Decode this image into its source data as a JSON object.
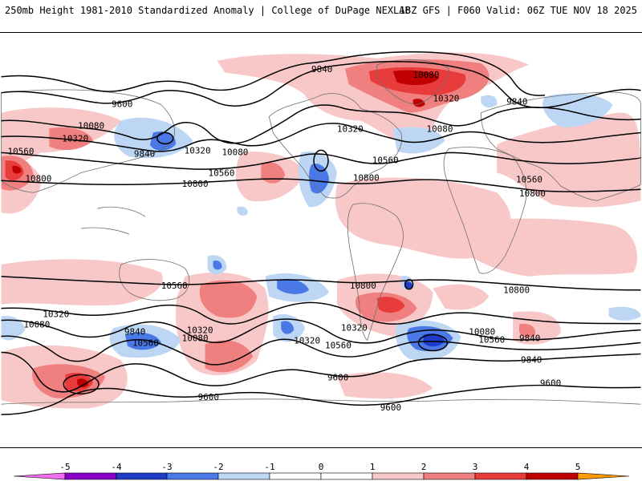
{
  "header": {
    "left": "250mb Height 1981-2010 Standardized Anomaly | College of DuPage NEXLAB",
    "right": "18Z GFS | F060 Valid: 06Z TUE NOV 18 2025"
  },
  "colors": {
    "neg5": "#f06ef0",
    "neg4": "#8a00c8",
    "neg3": "#1e3cc8",
    "neg2": "#4a78e6",
    "neg1": "#bcd6f4",
    "zero": "#ffffff",
    "pos1": "#f8c8c8",
    "pos2": "#f08080",
    "pos3": "#e83c3c",
    "pos4": "#c00000",
    "pos5": "#ff9a00",
    "contour": "#000000",
    "coast": "#6e6e6e"
  },
  "legend": {
    "labels": [
      "-5",
      "-4",
      "-3",
      "-2",
      "-1",
      "0",
      "1",
      "2",
      "3",
      "4",
      "5"
    ]
  },
  "contour_labels": [
    {
      "text": "9840",
      "region": "alaska"
    },
    {
      "text": "10080",
      "region": "canada"
    },
    {
      "text": "10320",
      "region": "canada-east"
    },
    {
      "text": "9840",
      "region": "scandinavia"
    },
    {
      "text": "9600",
      "region": "north-atlantic"
    },
    {
      "text": "10080",
      "region": "europe-west"
    },
    {
      "text": "10320",
      "region": "europe-west"
    },
    {
      "text": "10560",
      "region": "north-africa"
    },
    {
      "text": "10800",
      "region": "arabia"
    },
    {
      "text": "9840",
      "region": "east-asia"
    },
    {
      "text": "10320",
      "region": "north-pacific"
    },
    {
      "text": "10080",
      "region": "north-pacific"
    },
    {
      "text": "10560",
      "region": "pacific"
    },
    {
      "text": "10800",
      "region": "pacific"
    },
    {
      "text": "10320",
      "region": "north-america"
    },
    {
      "text": "10080",
      "region": "north-america-east"
    },
    {
      "text": "10560",
      "region": "gulf"
    },
    {
      "text": "10800",
      "region": "caribbean"
    },
    {
      "text": "10560",
      "region": "south-america-east"
    },
    {
      "text": "10800",
      "region": "south-america"
    },
    {
      "text": "10800",
      "region": "south-atlantic"
    },
    {
      "text": "10800",
      "region": "south-indian"
    },
    {
      "text": "10560",
      "region": "south-indian"
    },
    {
      "text": "10320",
      "region": "south-indian-west"
    },
    {
      "text": "10080",
      "region": "australia-south"
    },
    {
      "text": "9840",
      "region": "australia-south"
    },
    {
      "text": "10560",
      "region": "south-pacific"
    },
    {
      "text": "10320",
      "region": "south-pacific"
    },
    {
      "text": "10080",
      "region": "south-pacific-east"
    },
    {
      "text": "10320",
      "region": "south-pacific-east"
    },
    {
      "text": "10560",
      "region": "drake"
    },
    {
      "text": "10320",
      "region": "south-atlantic-west"
    },
    {
      "text": "10080",
      "region": "south-atlantic"
    },
    {
      "text": "10560",
      "region": "south-atlantic-east"
    },
    {
      "text": "9840",
      "region": "southern-ocean"
    },
    {
      "text": "9840",
      "region": "southern-ocean-east"
    },
    {
      "text": "9600",
      "region": "antarctica"
    },
    {
      "text": "9600",
      "region": "antarctica"
    },
    {
      "text": "9600",
      "region": "antarctica-east"
    },
    {
      "text": "9600",
      "region": "antarctica-west"
    }
  ]
}
